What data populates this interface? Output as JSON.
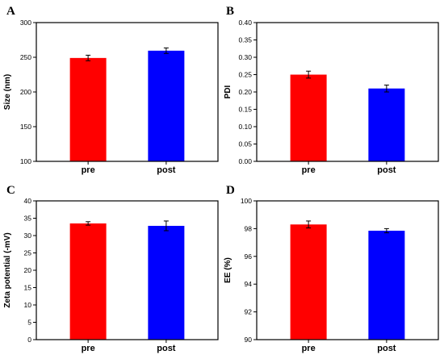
{
  "chart_data": [
    {
      "panel": "A",
      "type": "bar",
      "categories": [
        "pre",
        "post"
      ],
      "values": [
        249,
        259.5
      ],
      "errors": [
        4,
        4
      ],
      "ylabel": "Size (nm)",
      "ylim": [
        100,
        300
      ],
      "yticks": [
        "100",
        "150",
        "200",
        "250",
        "300"
      ],
      "colors": [
        "#ff0000",
        "#0000ff"
      ]
    },
    {
      "panel": "B",
      "type": "bar",
      "categories": [
        "pre",
        "post"
      ],
      "values": [
        0.25,
        0.21
      ],
      "errors": [
        0.01,
        0.01
      ],
      "ylabel": "PDI",
      "ylim": [
        0,
        0.4
      ],
      "yticks": [
        "0.00",
        "0.05",
        "0.10",
        "0.15",
        "0.20",
        "0.25",
        "0.30",
        "0.35",
        "0.40"
      ],
      "colors": [
        "#ff0000",
        "#0000ff"
      ]
    },
    {
      "panel": "C",
      "type": "bar",
      "categories": [
        "pre",
        "post"
      ],
      "values": [
        33.5,
        32.8
      ],
      "errors": [
        0.5,
        1.4
      ],
      "ylabel": "Zeta potential (-mV)",
      "ylim": [
        0,
        40
      ],
      "yticks": [
        "0",
        "5",
        "10",
        "15",
        "20",
        "25",
        "30",
        "35",
        "40"
      ],
      "colors": [
        "#ff0000",
        "#0000ff"
      ]
    },
    {
      "panel": "D",
      "type": "bar",
      "categories": [
        "pre",
        "post"
      ],
      "values": [
        98.3,
        97.85
      ],
      "errors": [
        0.25,
        0.15
      ],
      "ylabel": "EE (%)",
      "ylim": [
        90,
        100
      ],
      "yticks": [
        "90",
        "92",
        "94",
        "96",
        "98",
        "100"
      ],
      "colors": [
        "#ff0000",
        "#0000ff"
      ]
    }
  ]
}
